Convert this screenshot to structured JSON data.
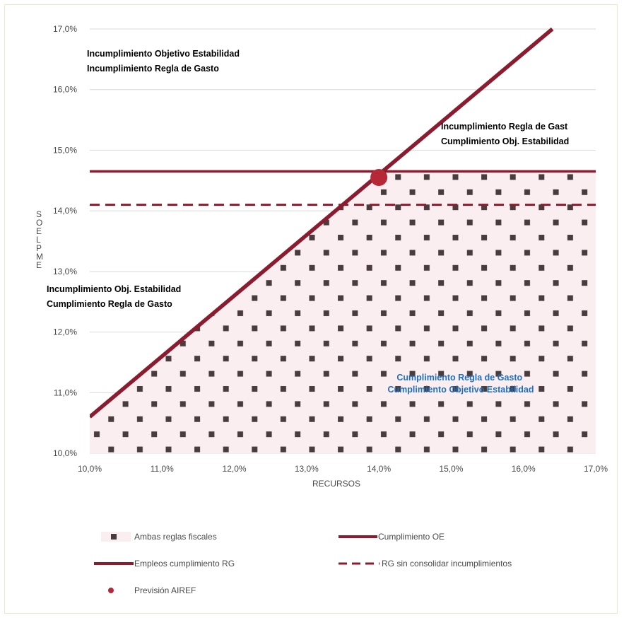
{
  "colors": {
    "line": "#8b1c30",
    "dot": "#b42838",
    "fill_bg": "#fbeef1",
    "fill_dots": "#4a3c3c",
    "grid": "#d9d9d9",
    "blue_text": "#1f6fbf"
  },
  "chart_data": {
    "type": "line",
    "xlabel": "RECURSOS",
    "ylabel": "EMPLEOS",
    "xlim": [
      10.0,
      17.0
    ],
    "ylim": [
      10.0,
      17.0
    ],
    "x_ticks": [
      "10,0%",
      "11,0%",
      "12,0%",
      "13,0%",
      "14,0%",
      "15,0%",
      "16,0%",
      "17,0%"
    ],
    "y_ticks": [
      "10,0%",
      "11,0%",
      "12,0%",
      "13,0%",
      "14,0%",
      "15,0%",
      "16,0%",
      "17,0%"
    ],
    "grid": "horizontal",
    "series": [
      {
        "name": "Cumplimiento OE",
        "style": "solid",
        "points": [
          [
            10.0,
            10.6
          ],
          [
            16.4,
            17.0
          ]
        ]
      },
      {
        "name": "Empleos cumplimiento RG",
        "style": "solid",
        "points": [
          [
            10.0,
            14.65
          ],
          [
            17.0,
            14.65
          ]
        ]
      },
      {
        "name": "RG sin consolidar incumplimientos",
        "style": "dashed",
        "points": [
          [
            10.0,
            14.1
          ],
          [
            17.0,
            14.1
          ]
        ]
      },
      {
        "name": "Previsión AIREF",
        "style": "point",
        "points": [
          [
            14.0,
            14.55
          ]
        ]
      }
    ],
    "area": {
      "name": "Ambas reglas fiscales",
      "description_series": "below min(Cumplimiento OE, Empleos cumplimiento RG)"
    },
    "annotations": [
      {
        "lines": [
          "Incumplimiento  Objetivo Estabilidad",
          "Incumplimiento  Regla de Gasto"
        ],
        "color": "black"
      },
      {
        "lines": [
          "Incumplimiento  Regla de Gast",
          "Cumplimiento Obj. Estabilidad"
        ],
        "color": "black"
      },
      {
        "lines": [
          "Incumplimiento  Obj. Estabilidad",
          "Cumplimiento Regla de Gasto"
        ],
        "color": "black"
      },
      {
        "lines": [
          "Cumplimiento Regla de Gasto",
          "Cumplimiento Objetivo Estabilidad"
        ],
        "color": "blue"
      }
    ],
    "legend": {
      "placement": "bottom",
      "items": [
        {
          "label": "Ambas reglas fiscales",
          "marker": "pattern"
        },
        {
          "label": "Cumplimiento OE",
          "marker": "solid"
        },
        {
          "label": "Empleos cumplimiento RG",
          "marker": "solid"
        },
        {
          "label": "RG sin consolidar incumplimientos",
          "marker": "dashed"
        },
        {
          "label": "Previsión AIREF",
          "marker": "dot"
        }
      ]
    }
  }
}
